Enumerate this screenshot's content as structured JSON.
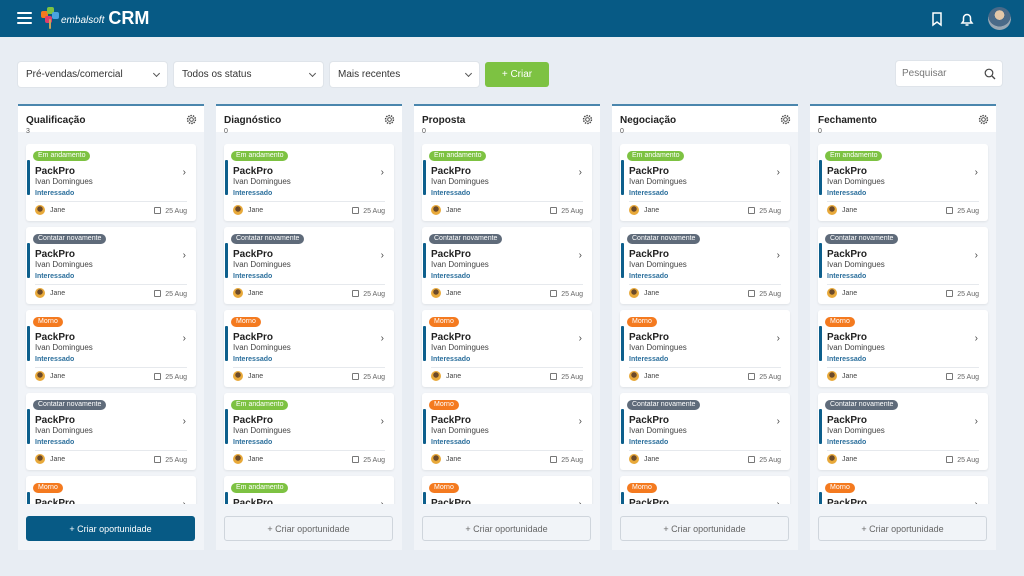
{
  "header": {
    "logo_small": "embalsoft",
    "logo_big": "CRM",
    "icons": [
      "menu-icon",
      "bookmark-icon",
      "bell-icon",
      "user-avatar"
    ]
  },
  "toolbar": {
    "filter_team": "Pré-vendas/comercial",
    "filter_status": "Todos os status",
    "sort": "Mais recentes",
    "create_label": "+ Criar",
    "search_placeholder": "Pesquisar"
  },
  "colors": {
    "primary": "#075a85",
    "green": "#7dc242",
    "orange": "#f47a1f",
    "gray": "#5f6b7a"
  },
  "tag_colors": {
    "Em andamento": "#7dc242",
    "Contatar novamente": "#5f6b7a",
    "Morno": "#f47a1f"
  },
  "add_label": "+ Criar oportunidade",
  "columns": [
    {
      "title": "Qualificação",
      "count": "3",
      "tags": [
        "Em andamento",
        "Contatar novamente",
        "Morno",
        "Contatar novamente",
        "Morno"
      ]
    },
    {
      "title": "Diagnóstico",
      "count": "0",
      "tags": [
        "Em andamento",
        "Contatar novamente",
        "Morno",
        "Em andamento",
        "Em andamento"
      ]
    },
    {
      "title": "Proposta",
      "count": "0",
      "tags": [
        "Em andamento",
        "Contatar novamente",
        "Morno",
        "Morno",
        "Morno"
      ]
    },
    {
      "title": "Negociação",
      "count": "0",
      "tags": [
        "Em andamento",
        "Contatar novamente",
        "Morno",
        "Contatar novamente",
        "Morno"
      ]
    },
    {
      "title": "Fechamento",
      "count": "0",
      "tags": [
        "Em andamento",
        "Contatar novamente",
        "Morno",
        "Contatar novamente",
        "Morno"
      ]
    }
  ],
  "card": {
    "company": "PackPro",
    "contact": "Ivan Domingues",
    "status": "Interessado",
    "owner": "Jane",
    "date": "25 Aug"
  }
}
